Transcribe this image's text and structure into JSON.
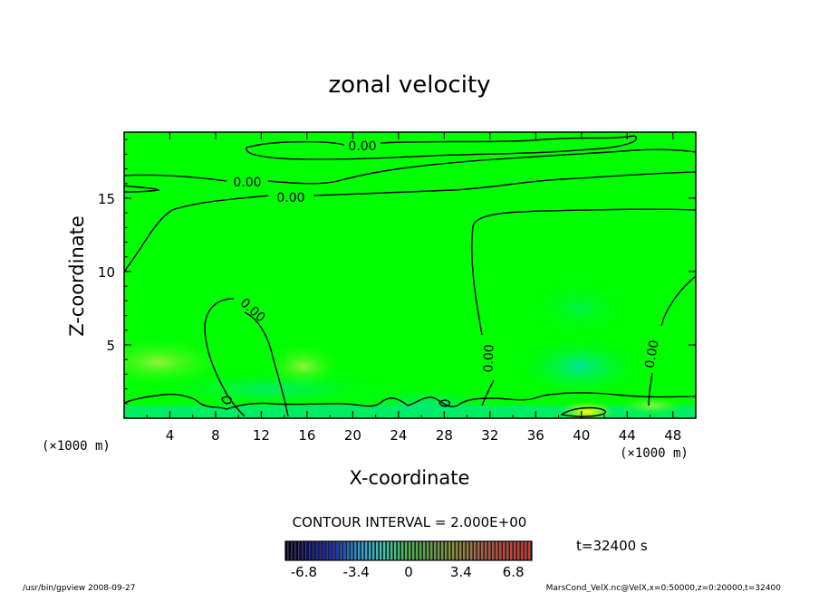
{
  "chart_data": {
    "type": "heatmap",
    "title": "zonal velocity",
    "xlabel": "X-coordinate",
    "ylabel": "Z-coordinate",
    "x_unit": "(×1000 m)",
    "y_unit": "(×1000 m)",
    "xlim": [
      0,
      50
    ],
    "ylim": [
      0,
      19.5
    ],
    "x_ticks": [
      "4",
      "8",
      "12",
      "16",
      "20",
      "24",
      "28",
      "32",
      "36",
      "40",
      "44",
      "48"
    ],
    "y_ticks": [
      "5",
      "10",
      "15"
    ],
    "contour_interval_text": "CONTOUR INTERVAL = 2.000E+00",
    "contour_labels": [
      "0.00",
      "0.00",
      "0.00",
      "0.00",
      "0.00",
      "0.00"
    ],
    "colorbar": {
      "range": [
        -8,
        8
      ],
      "tick_labels": [
        "-6.8",
        "-3.4",
        "0",
        "3.4",
        "6.8"
      ],
      "colors": [
        "#000020",
        "#0a0a80",
        "#1030d0",
        "#20a0e0",
        "#30d0c0",
        "#40c040",
        "#60a040",
        "#909030",
        "#b06040",
        "#d04030",
        "#e03030"
      ]
    },
    "field_colors": {
      "background": "#00ff00",
      "weak_positive": "#70ff30",
      "weak_negative": "#00e8a0",
      "strong_negative": "#00d8e0",
      "strong_positive": "#ffff00"
    }
  },
  "time_label": "t=32400 s",
  "footer_left": "/usr/bin/gpview   2008-09-27",
  "footer_right": "MarsCond_VelX.nc@VelX,x=0:50000,z=0:20000,t=32400"
}
